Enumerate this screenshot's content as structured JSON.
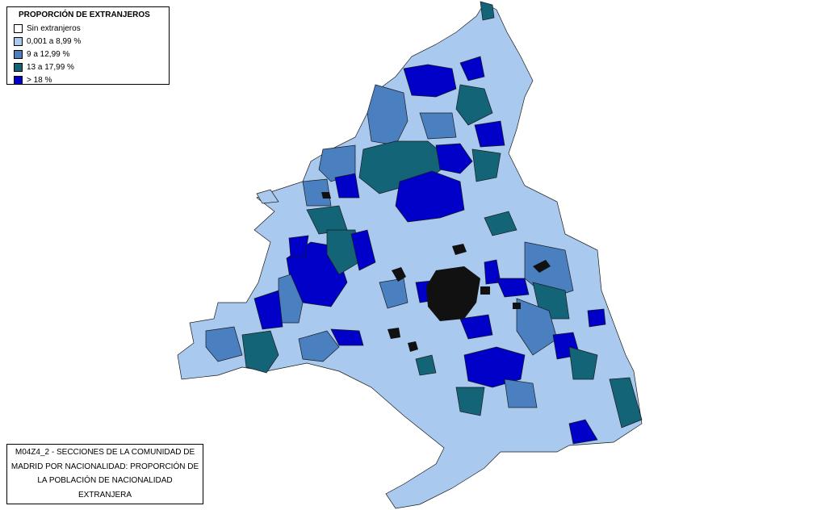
{
  "legend": {
    "title": "PROPORCIÓN DE EXTRANJEROS",
    "items": [
      {
        "label": "Sin extranjeros",
        "color": "#ffffff"
      },
      {
        "label": "0,001 a 8,99 %",
        "color": "#a9c9ee"
      },
      {
        "label": "9 a 12,99 %",
        "color": "#4a80c0"
      },
      {
        "label": "13 a 17,99 %",
        "color": "#146478"
      },
      {
        "label": "> 18 %",
        "color": "#0000c8"
      }
    ]
  },
  "caption": {
    "lines": [
      "M04Z4_2 - SECCIONES DE LA COMUNIDAD DE",
      "MADRID POR NACIONALIDAD: PROPORCIÓN DE",
      "LA POBLACIÓN DE NACIONALIDAD",
      "EXTRANJERA"
    ]
  }
}
